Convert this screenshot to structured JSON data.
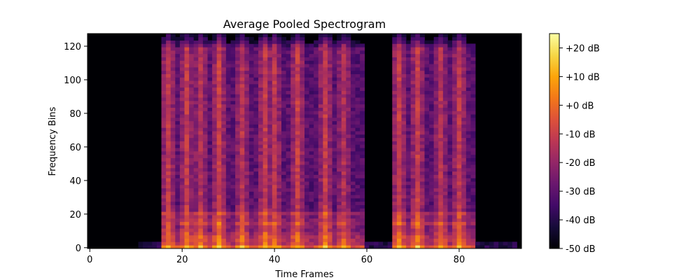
{
  "chart_data": {
    "type": "heatmap",
    "title": "Average Pooled Spectrogram",
    "xlabel": "Time Frames",
    "ylabel": "Frequency Bins",
    "xlim": [
      -0.5,
      93.5
    ],
    "ylim": [
      -0.5,
      127.5
    ],
    "xticks": [
      0,
      20,
      40,
      60,
      80
    ],
    "yticks": [
      0,
      20,
      40,
      60,
      80,
      100,
      120
    ],
    "colormap": "inferno",
    "colorbar": {
      "range": [
        -50,
        25
      ],
      "ticks": [
        -50,
        -40,
        -30,
        -20,
        -10,
        0,
        10,
        20
      ],
      "tick_labels": [
        "-50 dB",
        "-40 dB",
        "-30 dB",
        "-20 dB",
        "-10 dB",
        "+0 dB",
        "+10 dB",
        "+20 dB"
      ]
    },
    "time_frames": 94,
    "frequency_bins": 128,
    "speech_regions": [
      {
        "start": 16,
        "end": 59
      },
      {
        "start": 66,
        "end": 83
      }
    ],
    "peaks": [
      {
        "frame": 17,
        "level": 8
      },
      {
        "frame": 21,
        "level": 9
      },
      {
        "frame": 24,
        "level": 4
      },
      {
        "frame": 28,
        "level": 12
      },
      {
        "frame": 33,
        "level": 6
      },
      {
        "frame": 38,
        "level": 10
      },
      {
        "frame": 40,
        "level": 7
      },
      {
        "frame": 45,
        "level": 10
      },
      {
        "frame": 51,
        "level": 9
      },
      {
        "frame": 55,
        "level": 2
      },
      {
        "frame": 67,
        "level": 10
      },
      {
        "frame": 71,
        "level": 10
      },
      {
        "frame": 76,
        "level": 4
      },
      {
        "frame": 80,
        "level": 8
      }
    ]
  }
}
